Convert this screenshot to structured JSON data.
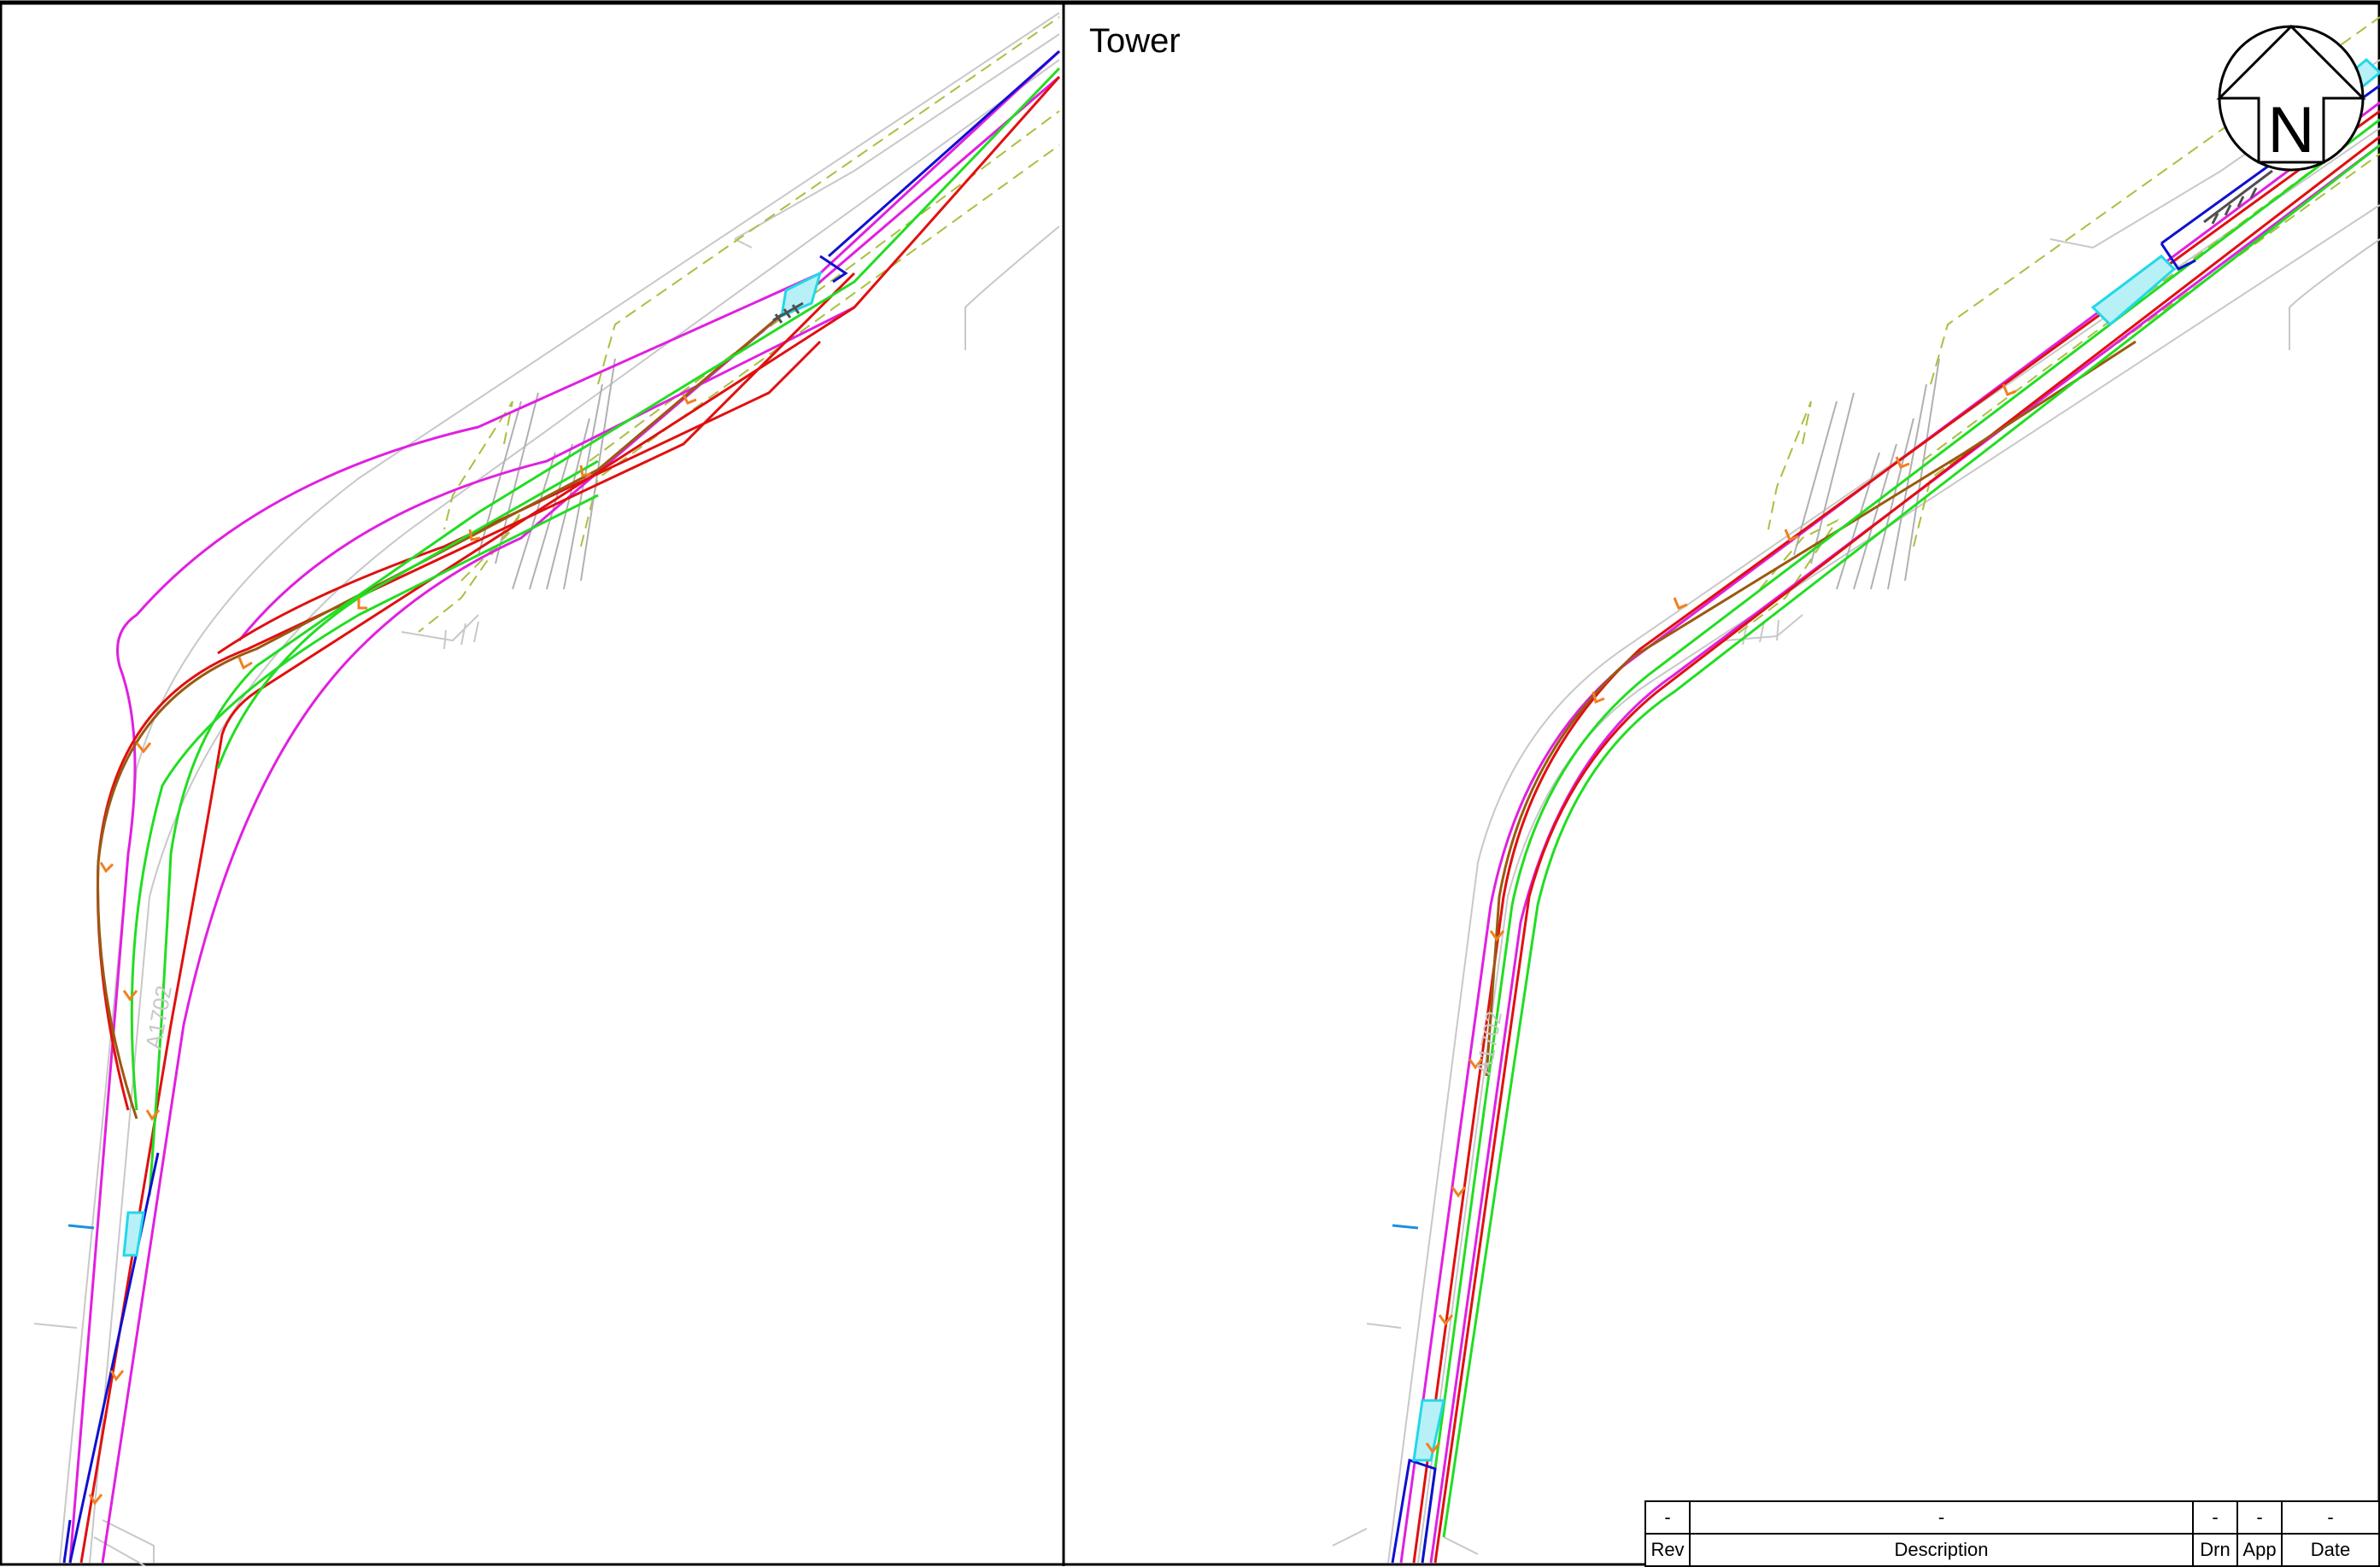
{
  "drawing": {
    "title": "Tower",
    "north_arrow": {
      "label": "N",
      "icon": "north-arrow-icon"
    },
    "road_label_left": "A1702",
    "road_label_right": "A1702",
    "colors": {
      "frame": "#000000",
      "road_kerb": "#c8c8c8",
      "alignment_red": "#e01010",
      "alignment_green": "#22dd22",
      "alignment_magenta": "#e020e0",
      "alignment_blue": "#1010d0",
      "alignment_brown": "#9a5a10",
      "dashed_boundary": "#a8c040",
      "highlight_cyan": "#22d8e8",
      "chainage_tick": "#f08020"
    }
  },
  "revision_block": {
    "headers": [
      "Rev",
      "Description",
      "Drn",
      "App",
      "Date"
    ],
    "row": [
      "-",
      "-",
      "-",
      "-",
      "-"
    ]
  }
}
